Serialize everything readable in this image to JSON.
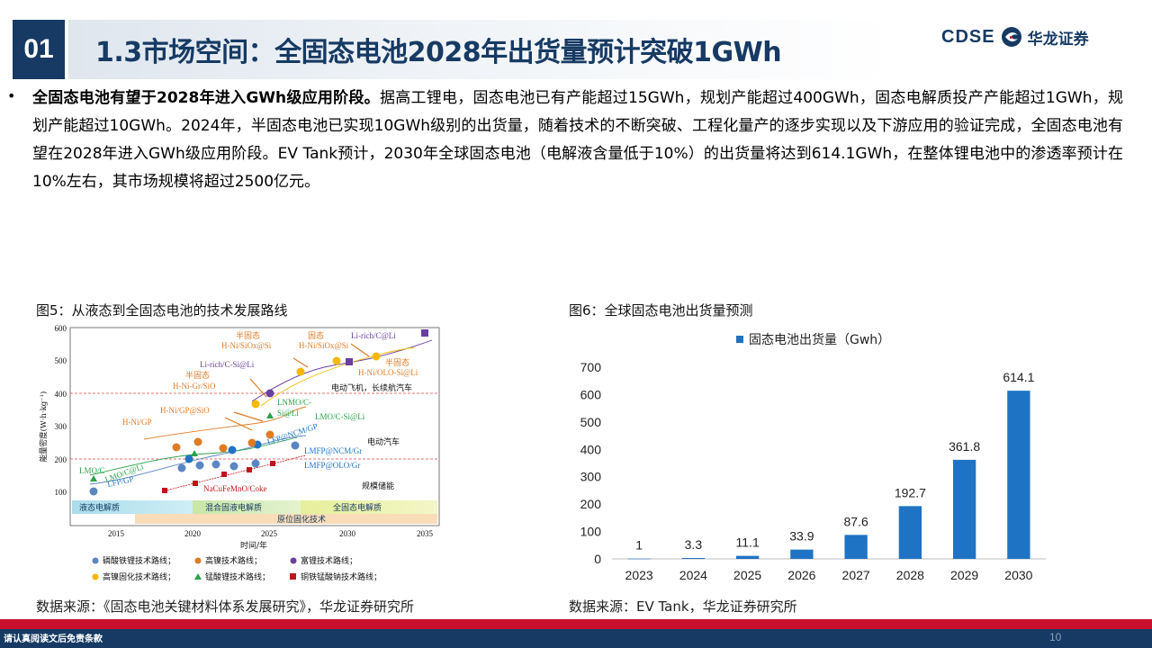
{
  "header": {
    "number": "01",
    "title": "1.3市场空间：全固态电池2028年出货量预计突破1GWh",
    "logo_text": "CDSE",
    "logo_cn": "华龙证券"
  },
  "bullet": {
    "lead": "全固态电池有望于2028年进入GWh级应用阶段。",
    "body": "据高工锂电，固态电池已有产能超过15GWh，规划产能超过400GWh，固态电解质投产产能超过1GWh，规划产能超过10GWh。2024年，半固态电池已实现10GWh级别的出货量，随着技术的不断突破、工程化量产的逐步实现以及下游应用的验证完成，全固态电池有望在2028年进入GWh级应用阶段。EV Tank预计，2030年全球固态电池（电解液含量低于10%）的出货量将达到614.1GWh，在整体锂电池中的渗透率预计在10%左右，其市场规模将超过2500亿元。"
  },
  "figure5": {
    "caption": "图5：从液态到全固态电池的技术发展路线",
    "source": "数据来源：《固态电池关键材料体系发展研究》，华龙证券研究所",
    "ylabel": "能量密度(W·h·kg⁻¹)",
    "xlabel": "时间/年",
    "y_ticks": [
      "100",
      "200",
      "300",
      "400",
      "500",
      "600"
    ],
    "x_ticks": [
      "2015",
      "2020",
      "2025",
      "2030",
      "2035"
    ],
    "stages": [
      "液态电解质",
      "混合固液电解质",
      "全固态电解质"
    ],
    "stage_bottom": "原位固化技术",
    "apps": [
      "电动飞机，长续航汽车",
      "电动汽车",
      "规模储能"
    ],
    "labels": [
      "Li-rich/C@Li",
      "半固态",
      "H-Ni/SiOx@Si",
      "固态",
      "H-Ni/SiOx@Si",
      "Li-rich/C-Si@Li",
      "H-Ni/OLO-Si@Li",
      "半固态",
      "H-Ni-Gr/SiO",
      "LNMO/C-",
      "H-Ni/GP@SiO",
      "Si@Li",
      "H-Ni/GP",
      "LMO/C-Si@Li",
      "LFP@NCM/GP",
      "LMO/C",
      "LMO/C@Li",
      "LMFP@NCM/Gr",
      "LFP/GP",
      "LMFP@OLO/Gr",
      "NaCuFeMnO/Coke"
    ],
    "legend": [
      "磷酸铁锂技术路线；",
      "高镍技术路线；",
      "富锂技术路线；",
      "高镍固化技术路线；",
      "锰酸锂技术路线；",
      "铜铁锰酸钠技术路线；"
    ],
    "colors": [
      "#5b86c2",
      "#e07b25",
      "#6a3fa0",
      "#f5b800",
      "#2aa14a",
      "#c0141b"
    ]
  },
  "chart_data": {
    "type": "bar",
    "title": "图6：全球固态电池出货量预测",
    "legend": "固态电池出货量（Gwh）",
    "categories": [
      "2023",
      "2024",
      "2025",
      "2026",
      "2027",
      "2028",
      "2029",
      "2030"
    ],
    "values": [
      1,
      3.3,
      11.1,
      33.9,
      87.6,
      192.7,
      361.8,
      614.1
    ],
    "value_labels": [
      "1",
      "3.3",
      "11.1",
      "33.9",
      "87.6",
      "192.7",
      "361.8",
      "614.1"
    ],
    "y_ticks": [
      "0",
      "100",
      "200",
      "300",
      "400",
      "500",
      "600",
      "700"
    ],
    "ylim": [
      0,
      700
    ],
    "bar_color": "#1f73c4",
    "source": "数据来源：EV Tank，华龙证券研究所"
  },
  "footer": {
    "disclaimer": "请认真阅读文后免责条款",
    "page": "10"
  }
}
